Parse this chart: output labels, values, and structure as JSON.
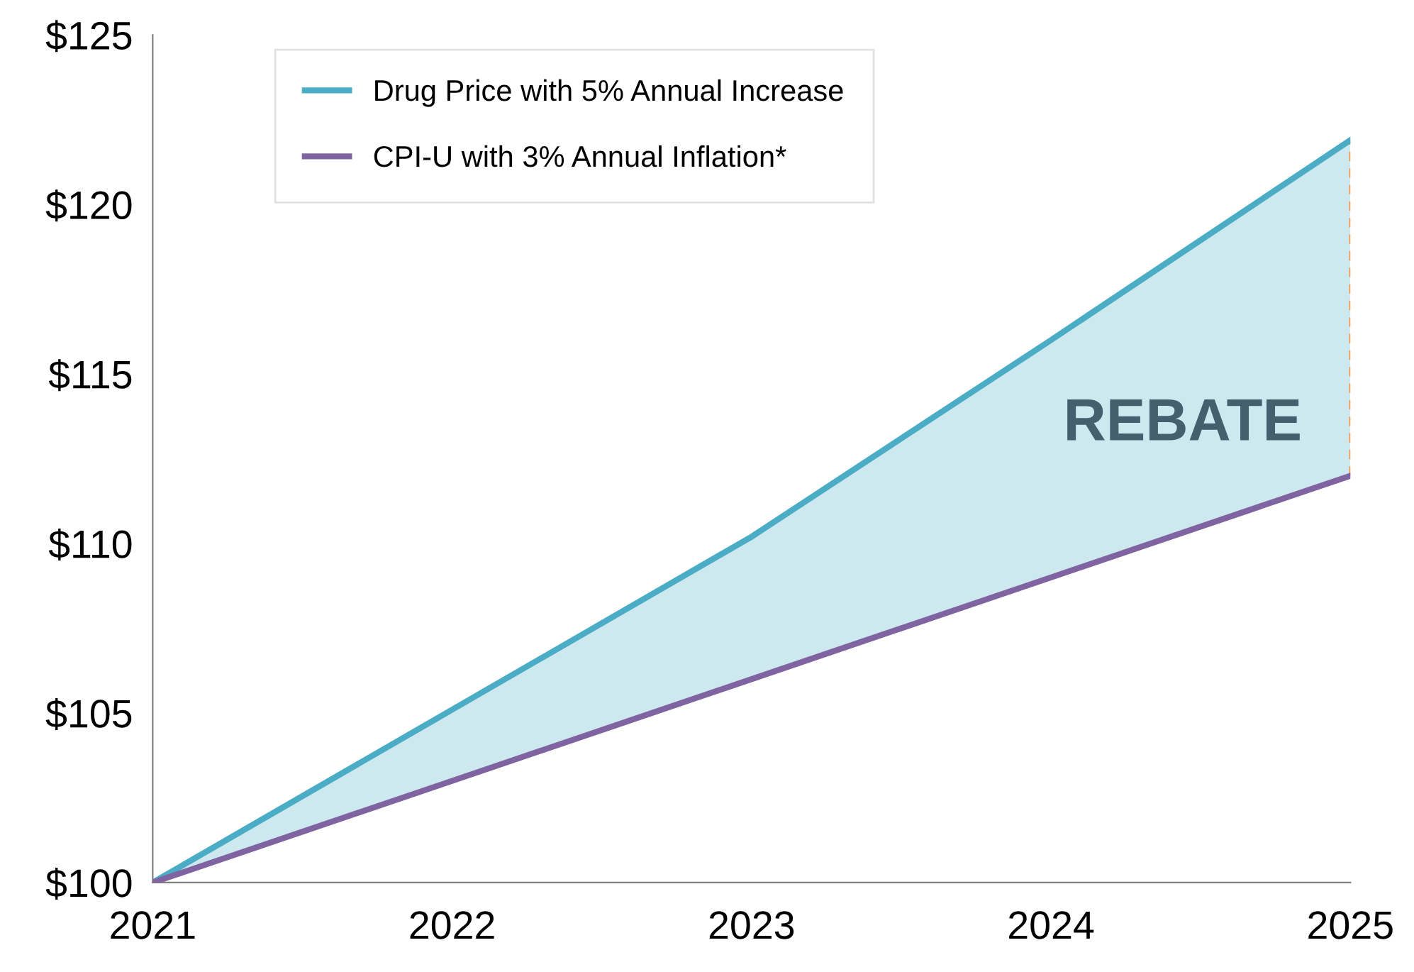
{
  "chart_data": {
    "type": "line",
    "x": [
      2021,
      2022,
      2023,
      2024,
      2025
    ],
    "series": [
      {
        "name": "Drug Price with 5% Annual Increase",
        "color": "#4bacc6",
        "values": [
          100,
          105.1,
          110.2,
          116.0,
          121.9
        ],
        "lower": [
          100,
          103,
          106,
          109,
          112
        ],
        "upper": [
          100,
          105.1,
          110.2,
          116.0,
          121.9
        ]
      },
      {
        "name": "CPI-U with 3% Annual Inflation*",
        "color": "#8064a2",
        "values": [
          100,
          103,
          106,
          109,
          112
        ]
      },
      {
        "type": "line",
        "color": "#f79646",
        "line_style": "dashed",
        "x": [
          2025,
          2025
        ],
        "values": [
          112,
          121.9
        ]
      }
    ],
    "xlim": [
      2021,
      2025
    ],
    "xticks": [
      2021,
      2022,
      2023,
      2024,
      2025
    ],
    "ylim": [
      100,
      125
    ],
    "yticks": [
      {
        "value": 100,
        "label": "$100"
      },
      {
        "value": 105,
        "label": "$105"
      },
      {
        "value": 110,
        "label": "$110"
      },
      {
        "value": 115,
        "label": "$115"
      },
      {
        "value": 120,
        "label": "$120"
      },
      {
        "value": 125,
        "label": "$125"
      }
    ],
    "annotations": [
      "REBATE"
    ],
    "legend": "top left",
    "grid": false,
    "marker": "none",
    "line_style": "solid"
  }
}
